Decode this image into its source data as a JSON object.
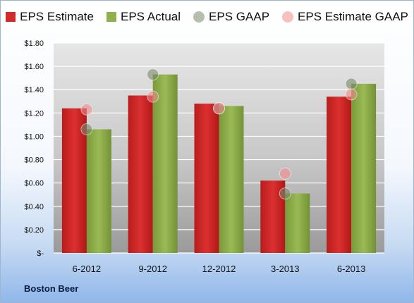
{
  "company": "Boston Beer",
  "colors": {
    "estimate": "#d42a2a",
    "actual": "#8fb04a",
    "gaap": "#7a8a6a",
    "estimate_gaap": "#f28b8b"
  },
  "chart_data": {
    "type": "bar",
    "categories": [
      "6-2012",
      "9-2012",
      "12-2012",
      "3-2013",
      "6-2013"
    ],
    "series": [
      {
        "name": "EPS Estimate",
        "kind": "bar",
        "values": [
          1.24,
          1.35,
          1.28,
          0.62,
          1.34
        ]
      },
      {
        "name": "EPS Actual",
        "kind": "bar",
        "values": [
          1.06,
          1.53,
          1.26,
          0.51,
          1.45
        ]
      },
      {
        "name": "EPS GAAP",
        "kind": "point",
        "values": [
          1.06,
          1.53,
          1.24,
          0.51,
          1.45
        ]
      },
      {
        "name": "EPS Estimate GAAP",
        "kind": "point",
        "values": [
          1.23,
          1.34,
          1.24,
          0.68,
          1.36
        ]
      }
    ],
    "y_ticks": [
      "$-",
      "$0.20",
      "$0.40",
      "$0.60",
      "$0.80",
      "$1.00",
      "$1.20",
      "$1.40",
      "$1.60",
      "$1.80"
    ],
    "ylim": [
      0,
      1.8
    ],
    "grid": true,
    "legend": "top"
  }
}
